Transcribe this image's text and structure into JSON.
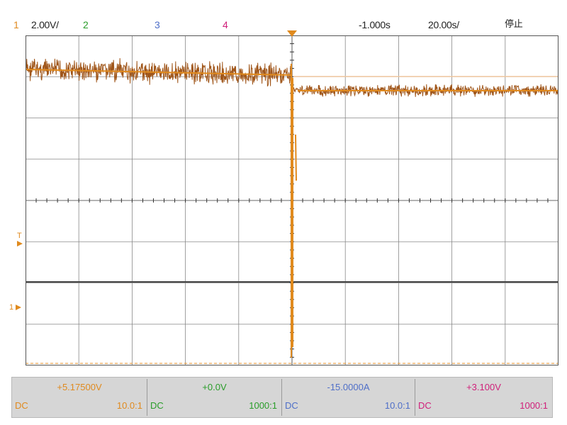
{
  "header": {
    "ch1_num": "1",
    "ch1_scale": "2.00V/",
    "ch2_num": "2",
    "ch3_num": "3",
    "ch4_num": "4",
    "delay": "-1.000s",
    "timebase": "20.00s/",
    "run_state": "停止"
  },
  "colors": {
    "ch1": "#e08a1e",
    "ch2": "#2a9d2a",
    "ch3": "#4f6fc8",
    "ch4": "#d0207a",
    "grid": "#888888",
    "bg": "#ffffff"
  },
  "channels": [
    {
      "offset": "+5.17500V",
      "coupling": "DC",
      "probe": "10.0:1"
    },
    {
      "offset": "+0.0V",
      "coupling": "DC",
      "probe": "1000:1"
    },
    {
      "offset": "-15.0000A",
      "coupling": "DC",
      "probe": "10.0:1"
    },
    {
      "offset": "+3.100V",
      "coupling": "DC",
      "probe": "1000:1"
    }
  ],
  "left_markers": {
    "trigger": "T",
    "ground": "1"
  }
}
